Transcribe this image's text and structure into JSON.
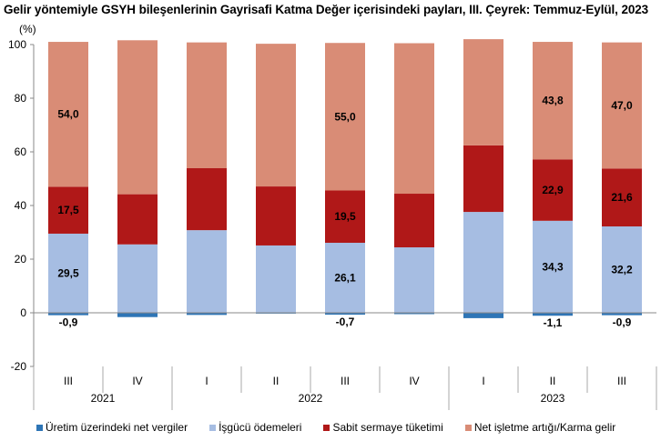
{
  "chart_data": {
    "type": "bar",
    "stacked": true,
    "title": "Gelir yöntemiyle GSYH bileşenlerinin Gayrisafi Katma Değer içerisindeki payları, III. Çeyrek: Temmuz-Eylül, 2023",
    "ylabel": "(%)",
    "ylim": [
      -20,
      100
    ],
    "yticks": [
      "100",
      "80",
      "60",
      "40",
      "20",
      "0",
      "-20"
    ],
    "categories": [
      "III",
      "IV",
      "I",
      "II",
      "III",
      "IV",
      "I",
      "II",
      "III"
    ],
    "years": [
      {
        "label": "2021",
        "span": 2
      },
      {
        "label": "2022",
        "span": 4
      },
      {
        "label": "2023",
        "span": 3
      }
    ],
    "series": [
      {
        "name": "Üretim üzerindeki net vergiler",
        "color": "#2e75b6",
        "values": [
          -0.9,
          -1.6,
          -0.8,
          -0.3,
          -0.7,
          -0.5,
          -2.0,
          -1.1,
          -0.9
        ],
        "labels": [
          "-0,9",
          null,
          null,
          null,
          "-0,7",
          null,
          null,
          "-1,1",
          "-0,9"
        ]
      },
      {
        "name": "İşgücü ödemeleri",
        "color": "#a6bde2",
        "values": [
          29.5,
          25.5,
          30.8,
          25.1,
          26.1,
          24.4,
          37.6,
          34.3,
          32.2
        ],
        "labels": [
          "29,5",
          null,
          null,
          null,
          "26,1",
          null,
          null,
          "34,3",
          "32,2"
        ]
      },
      {
        "name": "Sabit sermaye tüketimi",
        "color": "#b01818",
        "values": [
          17.5,
          18.7,
          23.1,
          22.0,
          19.5,
          20.0,
          24.8,
          22.9,
          21.6
        ],
        "labels": [
          "17,5",
          null,
          null,
          null,
          "19,5",
          null,
          null,
          "22,9",
          "21,6"
        ]
      },
      {
        "name": "Net işletme artığı/Karma gelir",
        "color": "#d98c76",
        "values": [
          54.0,
          57.4,
          46.9,
          53.2,
          55.0,
          56.1,
          39.6,
          43.8,
          47.0
        ],
        "labels": [
          "54,0",
          null,
          null,
          null,
          "55,0",
          null,
          null,
          "43,8",
          "47,0"
        ]
      }
    ],
    "grid": false,
    "legend": "bottom"
  }
}
